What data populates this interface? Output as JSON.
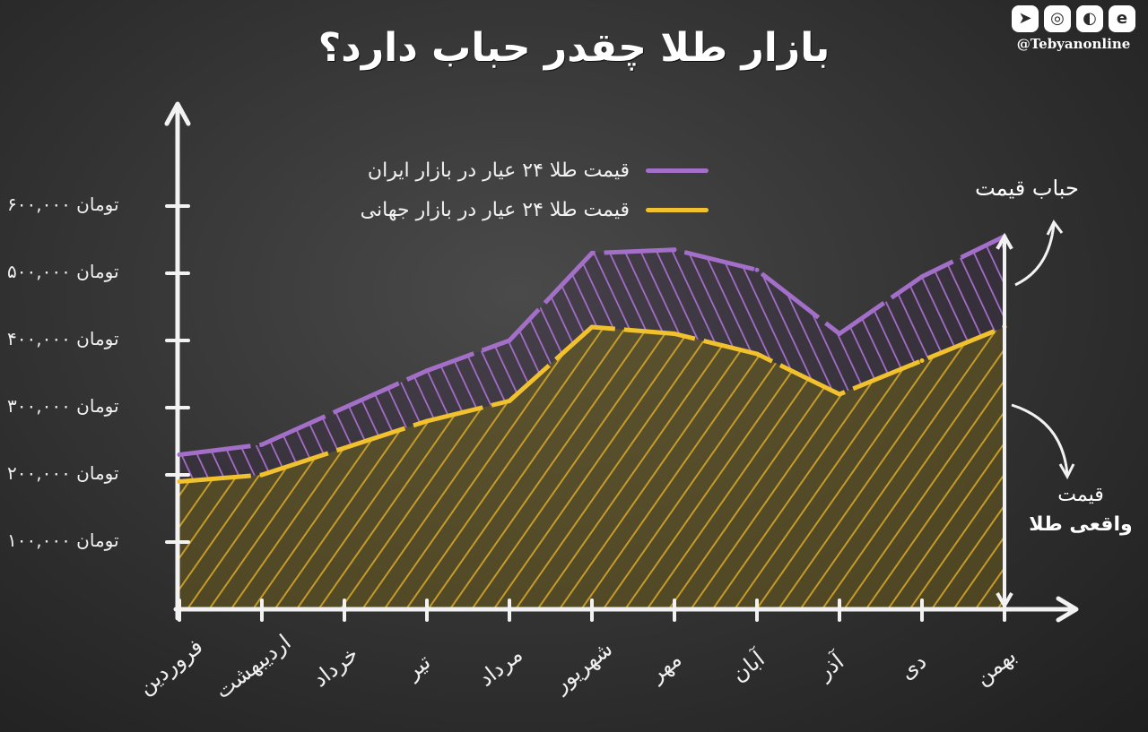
{
  "title": "بازار طلا چقدر حباب دارد؟",
  "brand": {
    "handle": "@Tebyanonline",
    "icons": [
      "telegram-icon",
      "instagram-icon",
      "soroush-icon",
      "eitaa-icon"
    ]
  },
  "colors": {
    "iran": "#a46fc9",
    "world": "#f2c12e",
    "chalk": "#f2f2f2"
  },
  "annotations": {
    "bubble": "حباب قیمت",
    "real_line1": "قیمت",
    "real_line2": "واقعی طلا"
  },
  "chart_data": {
    "type": "area",
    "title": "بازار طلا چقدر حباب دارد؟",
    "xlabel": "",
    "ylabel": "",
    "ylim": [
      0,
      600000
    ],
    "categories": [
      "فروردین",
      "اردیبهشت",
      "خرداد",
      "تیر",
      "مرداد",
      "شهریور",
      "مهر",
      "آبان",
      "آذر",
      "دی",
      "بهمن"
    ],
    "y_ticks": [
      {
        "value": 100000,
        "label": "۱۰۰,۰۰۰ تومان"
      },
      {
        "value": 200000,
        "label": "۲۰۰,۰۰۰ تومان"
      },
      {
        "value": 300000,
        "label": "۳۰۰,۰۰۰ تومان"
      },
      {
        "value": 400000,
        "label": "۴۰۰,۰۰۰ تومان"
      },
      {
        "value": 500000,
        "label": "۵۰۰,۰۰۰ تومان"
      },
      {
        "value": 600000,
        "label": "۶۰۰,۰۰۰ تومان"
      }
    ],
    "series": [
      {
        "name": "قیمت طلا ۲۴ عیار در بازار ایران",
        "color": "#a46fc9",
        "values": [
          230000,
          245000,
          300000,
          355000,
          400000,
          530000,
          535000,
          505000,
          410000,
          495000,
          555000
        ]
      },
      {
        "name": "قیمت طلا ۲۴ عیار در بازار جهانی",
        "color": "#f2c12e",
        "values": [
          190000,
          200000,
          240000,
          280000,
          310000,
          420000,
          410000,
          380000,
          320000,
          370000,
          420000
        ]
      }
    ],
    "legend": "top-left",
    "grid": false
  }
}
